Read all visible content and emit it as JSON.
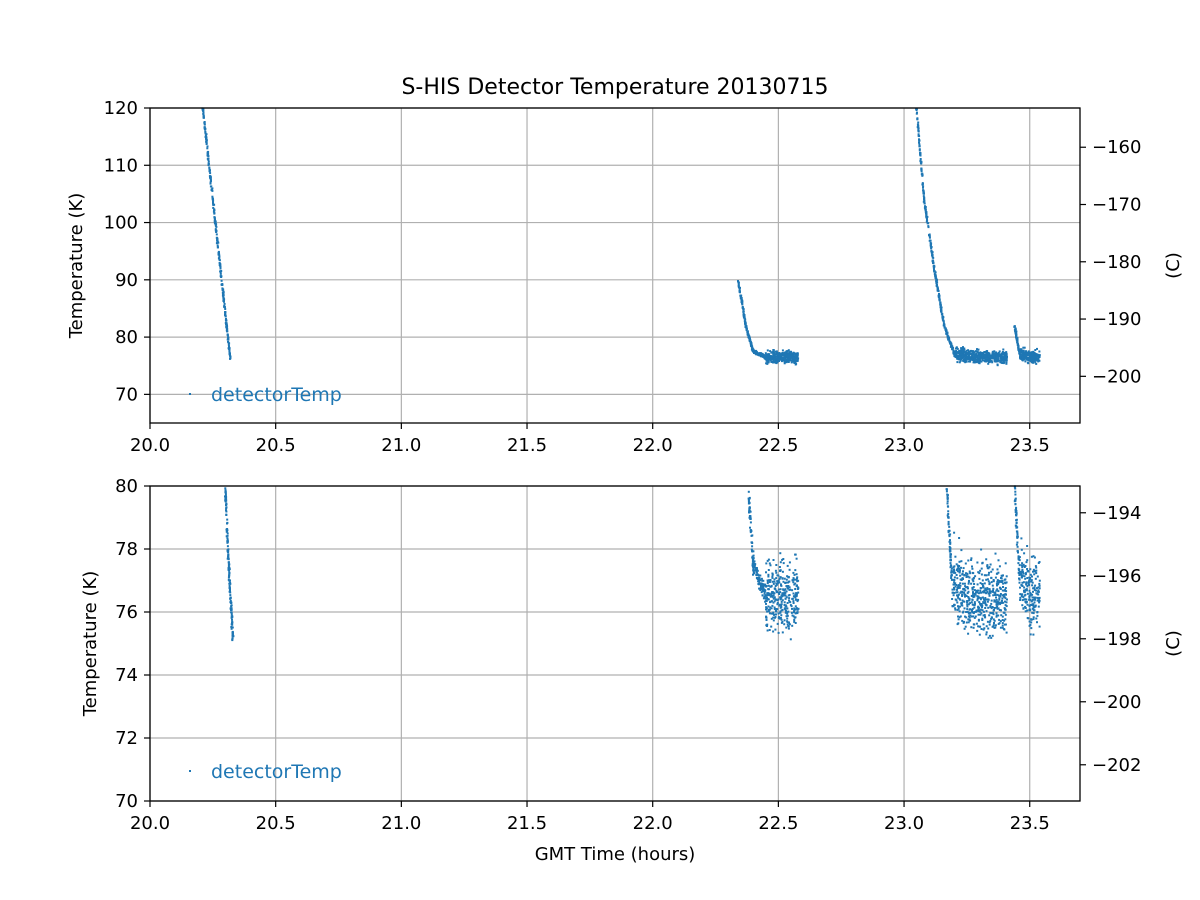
{
  "chart_data": [
    {
      "type": "scatter",
      "title": "S-HIS Detector Temperature 20130715",
      "xlabel": "",
      "ylabel": "Temperature (K)",
      "ylabel_right": "(C)",
      "xlim": [
        20.0,
        23.7
      ],
      "ylim": [
        65,
        120
      ],
      "ylim_right": [
        -208.15,
        -153.15
      ],
      "xticks": [
        "20.0",
        "20.5",
        "21.0",
        "21.5",
        "22.0",
        "22.5",
        "23.0",
        "23.5"
      ],
      "yticks": [
        "70",
        "80",
        "90",
        "100",
        "110",
        "120"
      ],
      "yticks_right": [
        "−160",
        "−170",
        "−180",
        "−190",
        "−200"
      ],
      "grid": true,
      "legend": {
        "label": "detectorTemp",
        "placement": "lower-left"
      },
      "color": "#1f77b4",
      "series": [
        {
          "name": "detectorTemp",
          "segments": [
            {
              "x": [
                20.21,
                20.24,
                20.27,
                20.3,
                20.32
              ],
              "y": [
                120,
                108,
                96,
                84,
                76
              ]
            },
            {
              "x": [
                22.34,
                22.37,
                22.4,
                22.45,
                22.5,
                22.58
              ],
              "y": [
                90,
                82,
                77.5,
                76.5,
                76.5,
                76.5
              ]
            },
            {
              "x": [
                23.05,
                23.08,
                23.12,
                23.16,
                23.2,
                23.3,
                23.41
              ],
              "y": [
                120,
                104,
                92,
                82,
                77,
                76.5,
                76.5
              ]
            },
            {
              "x": [
                23.44,
                23.46,
                23.5,
                23.54
              ],
              "y": [
                82,
                77,
                76.5,
                76.5
              ]
            }
          ],
          "plateau_noise": 1.0
        }
      ]
    },
    {
      "type": "scatter",
      "title": "",
      "xlabel": "GMT Time (hours)",
      "ylabel": "Temperature (K)",
      "ylabel_right": "(C)",
      "xlim": [
        20.0,
        23.7
      ],
      "ylim": [
        70,
        80
      ],
      "ylim_right": [
        -203.15,
        -193.15
      ],
      "xticks": [
        "20.0",
        "20.5",
        "21.0",
        "21.5",
        "22.0",
        "22.5",
        "23.0",
        "23.5"
      ],
      "yticks": [
        "70",
        "72",
        "74",
        "76",
        "78",
        "80"
      ],
      "yticks_right": [
        "−194",
        "−196",
        "−198",
        "−200",
        "−202"
      ],
      "grid": true,
      "legend": {
        "label": "detectorTemp",
        "placement": "lower-left"
      },
      "color": "#1f77b4",
      "series": [
        {
          "name": "detectorTemp",
          "segments": [
            {
              "x": [
                20.3,
                20.31,
                20.32,
                20.33
              ],
              "y": [
                80,
                78,
                76.5,
                75.2
              ]
            },
            {
              "x": [
                22.38,
                22.4,
                22.45,
                22.5,
                22.58
              ],
              "y": [
                80,
                77.5,
                76.5,
                76.5,
                76.5
              ]
            },
            {
              "x": [
                23.17,
                23.19,
                23.25,
                23.3,
                23.41
              ],
              "y": [
                80,
                77,
                76.5,
                76.5,
                76.5
              ]
            },
            {
              "x": [
                23.44,
                23.46,
                23.5,
                23.54
              ],
              "y": [
                80,
                77,
                76.5,
                76.5
              ]
            }
          ],
          "plateau_noise": 1.0
        }
      ]
    }
  ]
}
